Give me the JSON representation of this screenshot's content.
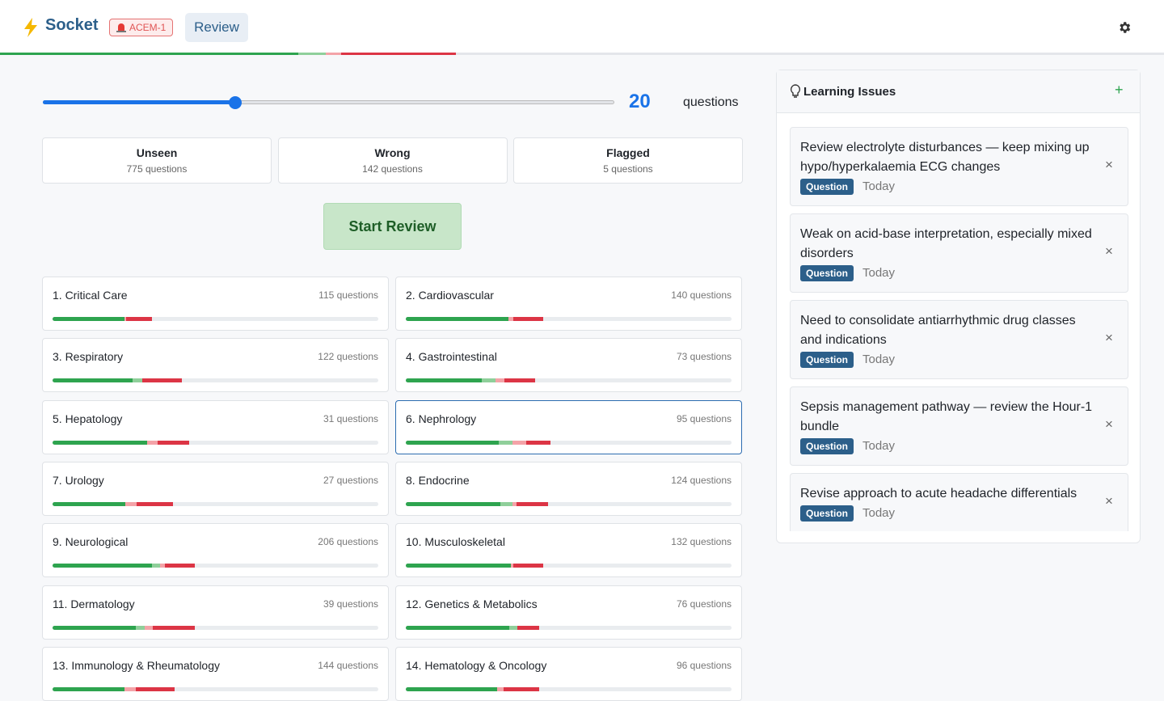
{
  "header": {
    "brand": "Socket",
    "badge": "ACEM-1",
    "tab": "Review",
    "progress": [
      25.6,
      2.4,
      1.3,
      9.9
    ]
  },
  "review_setup": {
    "question_count": 20,
    "count_label": "questions",
    "modes": [
      {
        "title": "Unseen",
        "count": "775 questions"
      },
      {
        "title": "Wrong",
        "count": "142 questions"
      },
      {
        "title": "Flagged",
        "count": "5 questions"
      }
    ],
    "start_button": "Start Review"
  },
  "categories": [
    {
      "name": "1. Critical Care",
      "count": "115 questions",
      "progress": [
        22,
        0,
        0.5,
        8
      ]
    },
    {
      "name": "2. Cardiovascular",
      "count": "140 questions",
      "progress": [
        31.4,
        0,
        1.5,
        9.2
      ]
    },
    {
      "name": "3. Respiratory",
      "count": "122 questions",
      "progress": [
        24.6,
        3,
        0,
        12
      ]
    },
    {
      "name": "4. Gastrointestinal",
      "count": "73 questions",
      "progress": [
        23.3,
        4.2,
        2.7,
        9.4
      ]
    },
    {
      "name": "5. Hepatology",
      "count": "31 questions",
      "progress": [
        29,
        0,
        3.2,
        9.7
      ]
    },
    {
      "name": "6. Nephrology",
      "count": "95 questions",
      "progress": [
        28.5,
        4.2,
        4.2,
        7.4
      ]
    },
    {
      "name": "7. Urology",
      "count": "27 questions",
      "progress": [
        22.3,
        0,
        3.5,
        11.2
      ]
    },
    {
      "name": "8. Endocrine",
      "count": "124 questions",
      "progress": [
        29,
        3.7,
        1.2,
        9.7
      ]
    },
    {
      "name": "9. Neurological",
      "count": "206 questions",
      "progress": [
        30.5,
        2.5,
        1.5,
        9.2
      ]
    },
    {
      "name": "10. Musculoskeletal",
      "count": "132 questions",
      "progress": [
        32.2,
        0,
        0.7,
        9.4
      ]
    },
    {
      "name": "11. Dermatology",
      "count": "39 questions",
      "progress": [
        25.6,
        2.7,
        2.5,
        12.9
      ]
    },
    {
      "name": "12. Genetics & Metabolics",
      "count": "76 questions",
      "progress": [
        31.7,
        2.5,
        0,
        6.7
      ]
    },
    {
      "name": "13. Immunology & Rheumatology",
      "count": "144 questions",
      "progress": [
        22,
        0,
        3.5,
        12
      ]
    },
    {
      "name": "14. Hematology & Oncology",
      "count": "96 questions",
      "progress": [
        28,
        0,
        2,
        11
      ]
    }
  ],
  "learning_issues": {
    "title": "Learning Issues",
    "add_button": "+",
    "remove_icon": "×",
    "items": [
      {
        "text": "Review electrolyte disturbances — keep mixing up hypo/hyperkalaemia ECG changes",
        "tag": "Question",
        "date": "Today"
      },
      {
        "text": "Weak on acid-base interpretation, especially mixed disorders",
        "tag": "Question",
        "date": "Today"
      },
      {
        "text": "Need to consolidate antiarrhythmic drug classes and indications",
        "tag": "Question",
        "date": "Today"
      },
      {
        "text": "Sepsis management pathway — review the Hour-1 bundle",
        "tag": "Question",
        "date": "Today"
      },
      {
        "text": "Revise approach to acute headache differentials",
        "tag": "Question",
        "date": "Today"
      }
    ]
  }
}
